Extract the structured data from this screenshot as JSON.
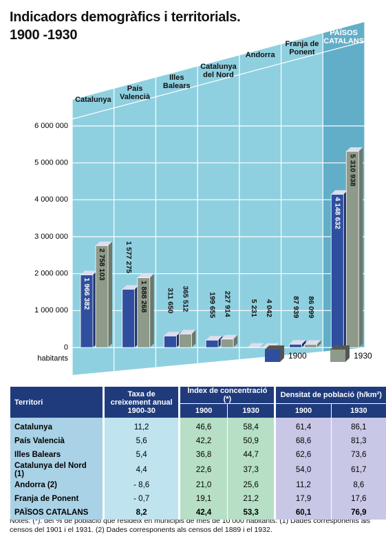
{
  "chart_data": {
    "type": "bar",
    "title": "Indicadors demogràfics i territorials.",
    "subtitle": "1900 -1930",
    "y_axis_unit": "habitants",
    "categories": [
      "Catalunya",
      "País\nValencià",
      "Illes\nBalears",
      "Catalunya\ndel Nord",
      "Andorra",
      "Franja de\nPonent",
      "PAÏSOS\nCATALANS"
    ],
    "series": [
      {
        "name": "1900",
        "color": "#2f4f9e",
        "values": [
          1966382,
          1577275,
          311650,
          199655,
          5231,
          87939,
          4148632
        ],
        "value_labels": [
          "1 966 382",
          "1 577 275",
          "311 650",
          "199 655",
          "5 231",
          "87 939",
          "4 148 632"
        ]
      },
      {
        "name": "1930",
        "color": "#8e9a8a",
        "values": [
          2758103,
          1888268,
          365512,
          227914,
          4042,
          86099,
          5310938
        ],
        "value_labels": [
          "2 758 103",
          "1 888 268",
          "365 512",
          "227 914",
          "4 042",
          "86 099",
          "5 310 938"
        ]
      }
    ],
    "ylim": [
      0,
      6000000
    ],
    "yticks": [
      0,
      {
        "value": 1000000,
        "label": "1 000 000"
      },
      {
        "value": 2000000,
        "label": "2 000 000"
      },
      {
        "value": 3000000,
        "label": "3 000 000"
      },
      {
        "value": 4000000,
        "label": "4 000 000"
      },
      {
        "value": 5000000,
        "label": "5 000 000"
      },
      {
        "value": 6000000,
        "label": "6 000 000"
      }
    ],
    "grid": true,
    "legend": "bottom-right"
  },
  "table": {
    "header": [
      "Territori",
      "Taxa de creixement anual 1900-30",
      "Índex de concentració (*)",
      "Densitat de població (h/km²)"
    ],
    "subheader": [
      "1900",
      "1930",
      "1900",
      "1930"
    ],
    "rows": [
      [
        "Catalunya",
        "11,2",
        "46,6",
        "58,4",
        "61,4",
        "86,1"
      ],
      [
        "País Valencià",
        "5,6",
        "42,2",
        "50,9",
        "68,6",
        "81,3"
      ],
      [
        "Illes Balears",
        "5,4",
        "36,8",
        "44,7",
        "62,6",
        "73,6"
      ],
      [
        "Catalunya del Nord (1)",
        "4,4",
        "22,6",
        "37,3",
        "54,0",
        "61,7"
      ],
      [
        "Andorra (2)",
        "- 8,6",
        "21,0",
        "25,6",
        "11,2",
        "8,6"
      ],
      [
        "Franja de Ponent",
        "- 0,7",
        "19,1",
        "21,2",
        "17,9",
        "17,6"
      ],
      [
        "PAÏSOS CATALANS",
        "8,2",
        "42,4",
        "53,3",
        "60,1",
        "76,9"
      ]
    ]
  },
  "notes": "Notes: (*). del % de població que resideix en municipis de més de 10 000 habitants. (1) Dades corresponents als censos del 1901 i el 1931. (2) Dades corresponents als censos del 1889 i el 1932."
}
